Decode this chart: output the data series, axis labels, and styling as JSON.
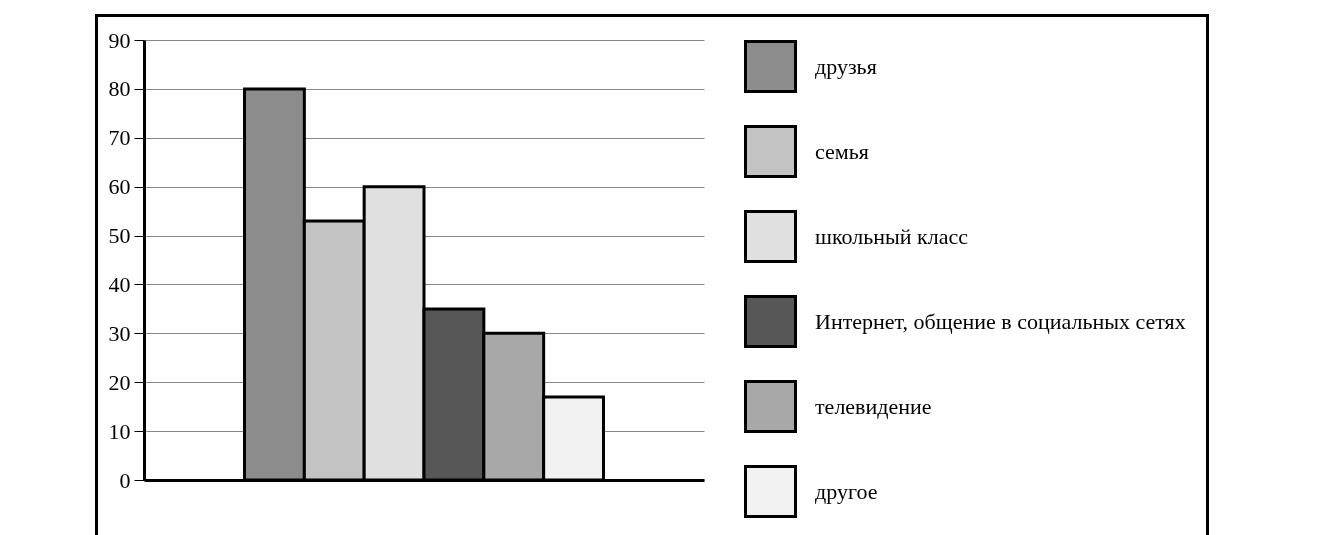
{
  "chart_data": {
    "type": "bar",
    "categories": [
      null
    ],
    "series": [
      {
        "name": "друзья",
        "color": "#8c8c8c",
        "values": [
          80
        ]
      },
      {
        "name": "семья",
        "color": "#c3c3c3",
        "values": [
          53
        ]
      },
      {
        "name": "школьный класс",
        "color": "#e0e0e0",
        "values": [
          60
        ]
      },
      {
        "name": "Интернет, общение в социальных сетях",
        "color": "#575757",
        "values": [
          35
        ]
      },
      {
        "name": "телевидение",
        "color": "#a8a8a8",
        "values": [
          30
        ]
      },
      {
        "name": "другое",
        "color": "#f2f2f2",
        "values": [
          17
        ]
      }
    ],
    "ylim": [
      0,
      90
    ],
    "yticks": [
      0,
      10,
      20,
      30,
      40,
      50,
      60,
      70,
      80,
      90
    ],
    "grid": "y",
    "legend": "right",
    "tick_labels": "y"
  }
}
